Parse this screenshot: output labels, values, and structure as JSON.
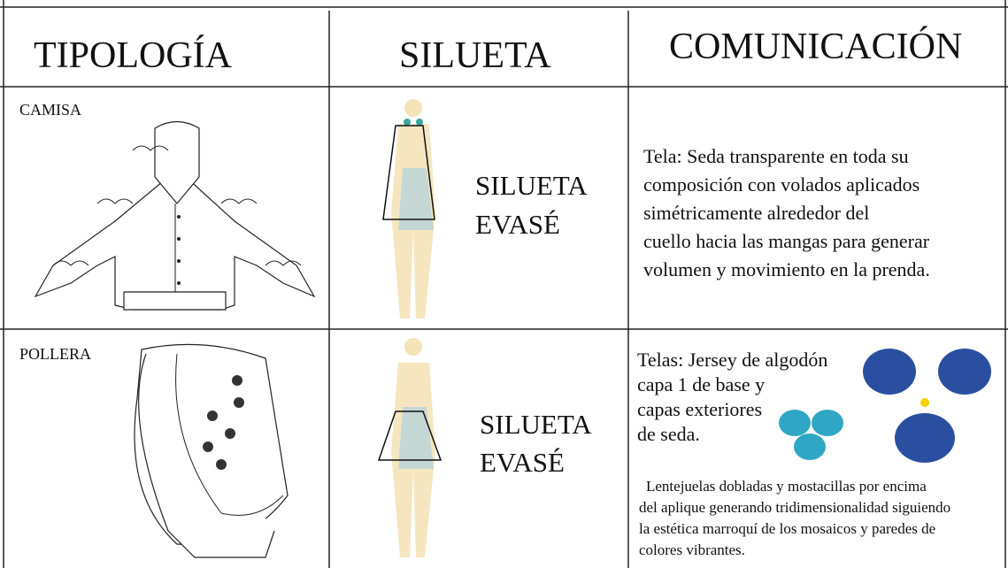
{
  "header": {
    "columns": [
      "TIPOLOGÍA",
      "SILUETA",
      "COMUNICACIÓN"
    ]
  },
  "rows": [
    {
      "typology": "CAMISA",
      "silhouette": [
        "SILUETA",
        "EVASÉ"
      ],
      "communication": [
        "Tela: Seda transparente en toda su",
        "composición con volados aplicados",
        "simétricamente alrededor del",
        "cuello hacia las mangas para generar",
        " volumen y movimiento en la prenda."
      ]
    },
    {
      "typology": "POLLERA",
      "silhouette": [
        "SILUETA",
        "EVASÉ"
      ],
      "communication": [
        "Telas: Jersey de algodón",
        "capa 1 de base y",
        "capas exteriores",
        "de seda."
      ],
      "note": [
        "Lentejuelas dobladas y mostacillas por encima",
        "del aplique generando tridimensionalidad siguiendo",
        "la estética marroquí de los mosaicos y paredes de",
        "colores vibrantes."
      ]
    }
  ]
}
